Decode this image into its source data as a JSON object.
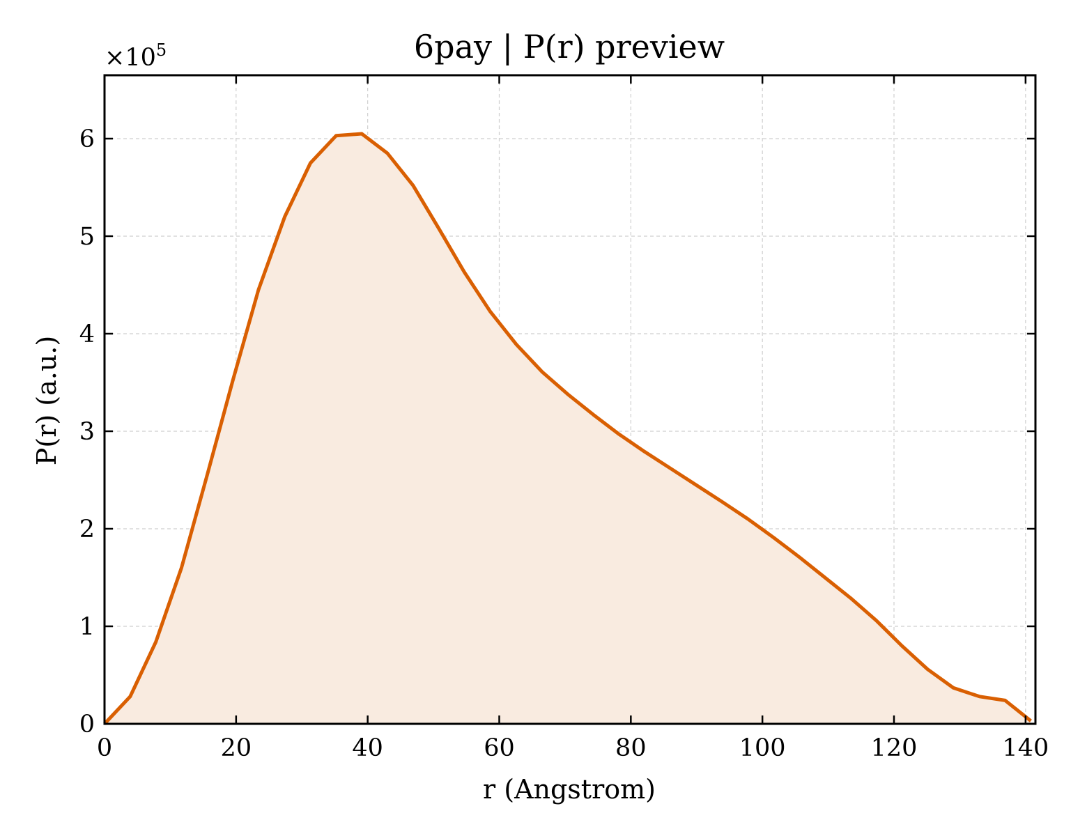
{
  "chart_data": {
    "type": "area",
    "title": "6pay | P(r) preview",
    "xlabel": "r (Angstrom)",
    "ylabel": "P(r) (a.u.)",
    "y_multiplier_base": "×10",
    "y_multiplier_exponent": "5",
    "xlim": [
      0,
      141.5
    ],
    "ylim": [
      0,
      6.65
    ],
    "y_scale_factor": 100000,
    "x_ticks": [
      0,
      20,
      40,
      60,
      80,
      100,
      120,
      140
    ],
    "x_tick_labels": [
      "0",
      "20",
      "40",
      "60",
      "80",
      "100",
      "120",
      "140"
    ],
    "y_ticks": [
      0,
      1,
      2,
      3,
      4,
      5,
      6
    ],
    "y_tick_labels": [
      "0",
      "1",
      "2",
      "3",
      "4",
      "5",
      "6"
    ],
    "grid": true,
    "legend": "none",
    "line_color": "#d95f02",
    "fill_color": "#f9ebe0",
    "series": [
      {
        "x": [
          0,
          3.9,
          7.8,
          11.7,
          15.6,
          19.5,
          23.4,
          27.4,
          31.3,
          35.2,
          39.1,
          43.0,
          46.9,
          50.8,
          54.7,
          58.6,
          62.6,
          66.5,
          70.4,
          74.3,
          78.2,
          82.1,
          86.0,
          89.9,
          93.8,
          97.8,
          101.7,
          105.6,
          109.5,
          113.4,
          117.3,
          121.2,
          125.1,
          129.0,
          133.0,
          136.9,
          140.8
        ],
        "values": [
          0,
          0.28,
          0.84,
          1.6,
          2.55,
          3.52,
          4.45,
          5.2,
          5.75,
          6.03,
          6.05,
          5.85,
          5.52,
          5.08,
          4.63,
          4.23,
          3.89,
          3.61,
          3.38,
          3.17,
          2.97,
          2.79,
          2.62,
          2.45,
          2.28,
          2.1,
          1.91,
          1.71,
          1.5,
          1.29,
          1.06,
          0.8,
          0.56,
          0.37,
          0.28,
          0.24,
          0.03
        ]
      }
    ]
  }
}
